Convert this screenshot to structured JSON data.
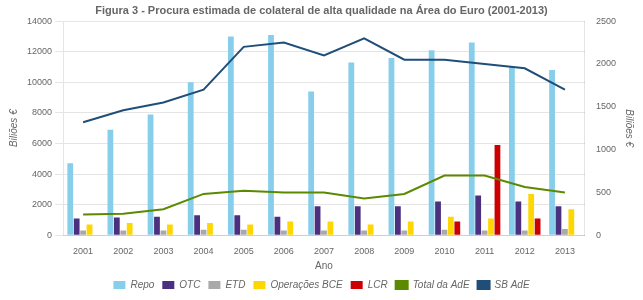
{
  "chart_data": {
    "type": "bar",
    "title": "Figura 3 - Procura estimada de colateral de alta qualidade na Área do Euro (2001-2013)",
    "categories": [
      "2001",
      "2002",
      "2003",
      "2004",
      "2005",
      "2006",
      "2007",
      "2008",
      "2009",
      "2010",
      "2011",
      "2012",
      "2013"
    ],
    "series": [
      {
        "name": "Repo",
        "color": "#87CEEB",
        "values": [
          4700,
          6900,
          7900,
          10000,
          13000,
          13100,
          9400,
          11300,
          11600,
          12100,
          12600,
          11000,
          10800
        ]
      },
      {
        "name": "OTC",
        "color": "#4B3080",
        "values": [
          1100,
          1150,
          1200,
          1300,
          1300,
          1200,
          1900,
          1900,
          1900,
          2200,
          2600,
          2200,
          1900
        ]
      },
      {
        "name": "ETD",
        "color": "#A9A9A9",
        "values": [
          300,
          300,
          300,
          350,
          350,
          300,
          300,
          300,
          300,
          350,
          300,
          300,
          400
        ]
      },
      {
        "name": "Operações BCE",
        "color": "#FFD700",
        "values": [
          700,
          800,
          700,
          800,
          700,
          900,
          900,
          700,
          900,
          1200,
          1100,
          2700,
          1700
        ]
      },
      {
        "name": "LCR",
        "color": "#CC0000",
        "values": [
          0,
          0,
          0,
          0,
          0,
          0,
          0,
          0,
          0,
          900,
          5900,
          1100,
          0
        ]
      },
      {
        "name": "Total da AdE",
        "type": "line",
        "color": "#5B8A00",
        "values": [
          1350,
          1400,
          1700,
          2700,
          2900,
          2800,
          2800,
          2400,
          2700,
          3900,
          3900,
          3150,
          2800
        ]
      },
      {
        "name": "SB AdE",
        "type": "line",
        "color": "#1F4E79",
        "axis": "y2",
        "values": [
          1320,
          1460,
          1550,
          1700,
          2200,
          2250,
          2100,
          2300,
          2050,
          2050,
          2000,
          1950,
          1700
        ]
      }
    ],
    "xlabel": "Ano",
    "ylabel": "Biliões €",
    "y2label": "Biliões €",
    "ylim": [
      0,
      14000
    ],
    "yticks": [
      0,
      2000,
      4000,
      6000,
      8000,
      10000,
      12000,
      14000
    ],
    "y2lim": [
      0,
      2500
    ],
    "y2ticks": [
      0,
      500,
      1000,
      1500,
      2000,
      2500
    ],
    "grid": true,
    "legend": "bottom"
  }
}
